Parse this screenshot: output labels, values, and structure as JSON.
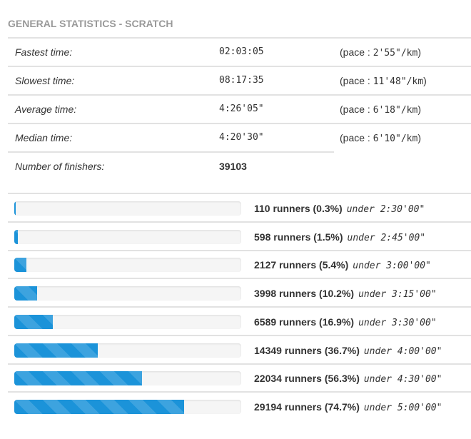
{
  "title": "GENERAL STATISTICS - SCRATCH",
  "stats": [
    {
      "label": "Fastest time:",
      "value": "02:03:05",
      "pace_prefix": "(pace : ",
      "pace": "2'55\"/km",
      "pace_suffix": ")"
    },
    {
      "label": "Slowest time:",
      "value": "08:17:35",
      "pace_prefix": "(pace : ",
      "pace": "11'48\"/km",
      "pace_suffix": ")"
    },
    {
      "label": "Average time:",
      "value": "4:26'05\"",
      "pace_prefix": "(pace : ",
      "pace": "6'18\"/km",
      "pace_suffix": ")"
    },
    {
      "label": "Median time:",
      "value": "4:20'30\"",
      "pace_prefix": "(pace : ",
      "pace": "6'10\"/km",
      "pace_suffix": ")"
    },
    {
      "label": "Number of finishers:",
      "value": "39103"
    }
  ],
  "bar_color": "#1b93d9",
  "thresholds": [
    {
      "count": "110 runners (0.3%)",
      "under": "under 2:30'00\"",
      "percent": 0.3
    },
    {
      "count": "598 runners (1.5%)",
      "under": "under 2:45'00\"",
      "percent": 1.5
    },
    {
      "count": "2127 runners (5.4%)",
      "under": "under 3:00'00\"",
      "percent": 5.4
    },
    {
      "count": "3998 runners (10.2%)",
      "under": "under 3:15'00\"",
      "percent": 10.2
    },
    {
      "count": "6589 runners (16.9%)",
      "under": "under 3:30'00\"",
      "percent": 16.9
    },
    {
      "count": "14349 runners (36.7%)",
      "under": "under 4:00'00\"",
      "percent": 36.7
    },
    {
      "count": "22034 runners (56.3%)",
      "under": "under 4:30'00\"",
      "percent": 56.3
    },
    {
      "count": "29194 runners (74.7%)",
      "under": "under 5:00'00\"",
      "percent": 74.7
    }
  ]
}
